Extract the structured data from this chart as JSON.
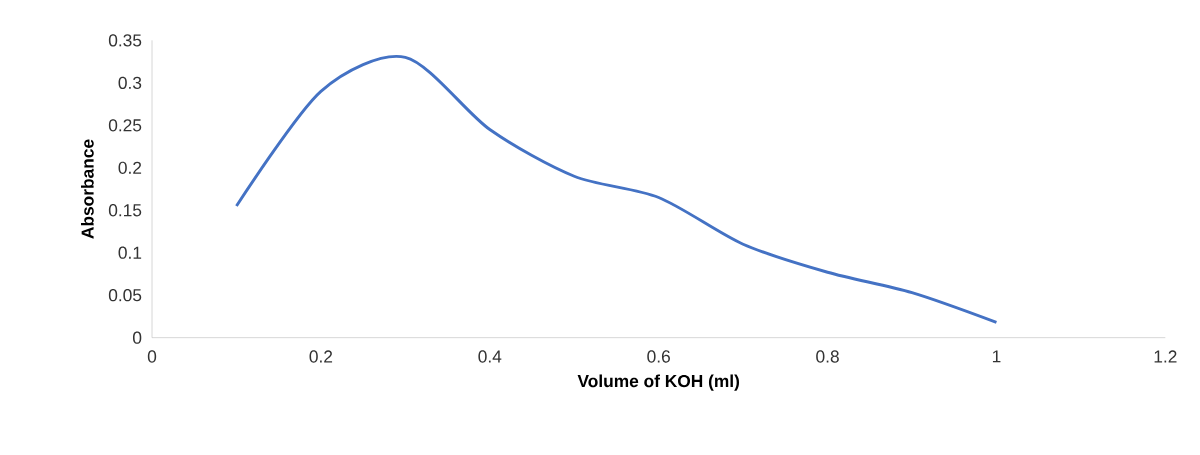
{
  "chart_data": {
    "type": "line",
    "xlabel": "Volume of KOH (ml)",
    "ylabel": "Absorbance",
    "x": [
      0.1,
      0.2,
      0.3,
      0.4,
      0.5,
      0.6,
      0.7,
      0.8,
      0.9,
      1.0
    ],
    "series": [
      {
        "color": "#4472c4",
        "values": [
          0.155,
          0.29,
          0.33,
          0.245,
          0.19,
          0.165,
          0.11,
          0.077,
          0.053,
          0.018
        ]
      }
    ],
    "xlim": [
      0,
      1.2
    ],
    "xticks": [
      0,
      0.2,
      0.4,
      0.6,
      0.8,
      1,
      1.2
    ],
    "ylim": [
      0,
      0.35
    ],
    "yticks": [
      0,
      0.05,
      0.1,
      0.15,
      0.2,
      0.25,
      0.3,
      0.35
    ],
    "grid": false,
    "marker": "none",
    "line_style": "solid"
  }
}
